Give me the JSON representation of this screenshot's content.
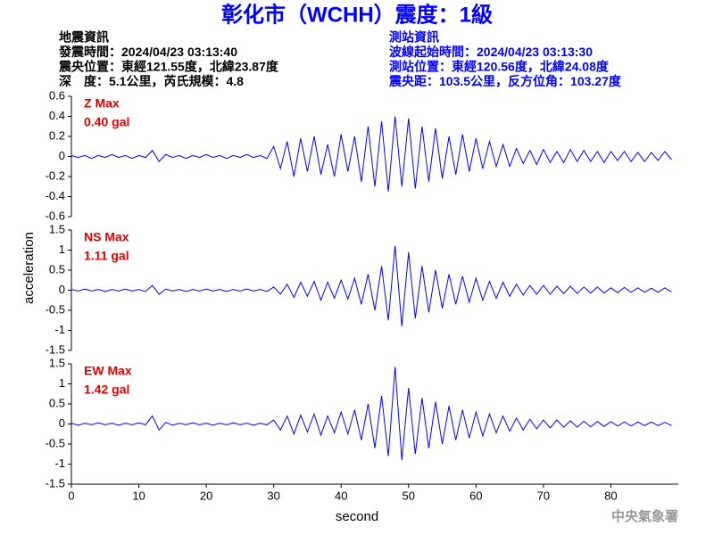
{
  "title": "彰化市（WCHH）震度：1級",
  "info_left": [
    "地震資訊",
    "發震時間：2024/04/23 03:13:40",
    "震央位置：東經121.55度，北緯23.87度",
    "深　度：5.1公里，芮氏規模：4.8"
  ],
  "info_right": [
    "測站資訊",
    "波線起始時間：2024/04/23 03:13:30",
    "測站位置：東經120.56度，北緯24.08度",
    "震央距：103.5公里，反方位角：103.27度"
  ],
  "footer": "中央氣象署",
  "chart_data": [
    {
      "type": "line",
      "label": "Z Max",
      "max_label": "0.40 gal",
      "color": "#0000ff",
      "x": [
        0,
        1,
        2,
        3,
        4,
        5,
        6,
        7,
        8,
        9,
        10,
        11,
        12,
        13,
        14,
        15,
        16,
        17,
        18,
        19,
        20,
        21,
        22,
        23,
        24,
        25,
        26,
        27,
        28,
        29,
        30,
        31,
        32,
        33,
        34,
        35,
        36,
        37,
        38,
        39,
        40,
        41,
        42,
        43,
        44,
        45,
        46,
        47,
        48,
        49,
        50,
        51,
        52,
        53,
        54,
        55,
        56,
        57,
        58,
        59,
        60,
        61,
        62,
        63,
        64,
        65,
        66,
        67,
        68,
        69,
        70,
        71,
        72,
        73,
        74,
        75,
        76,
        77,
        78,
        79,
        80,
        81,
        82,
        83,
        84,
        85,
        86,
        87,
        88,
        89
      ],
      "values": [
        0.01,
        -0.01,
        0.01,
        -0.02,
        0.01,
        -0.01,
        0.02,
        -0.01,
        0.01,
        -0.02,
        0.01,
        -0.01,
        0.06,
        -0.05,
        0.02,
        -0.01,
        0.01,
        -0.02,
        0.01,
        -0.01,
        0.02,
        -0.01,
        0.01,
        -0.02,
        0.01,
        -0.01,
        0.02,
        -0.01,
        0.01,
        -0.02,
        0.1,
        -0.12,
        0.15,
        -0.2,
        0.18,
        -0.15,
        0.2,
        -0.18,
        0.12,
        -0.2,
        0.22,
        -0.15,
        0.2,
        -0.25,
        0.3,
        -0.3,
        0.35,
        -0.35,
        0.4,
        -0.3,
        0.38,
        -0.32,
        0.3,
        -0.25,
        0.28,
        -0.22,
        0.2,
        -0.18,
        0.22,
        -0.15,
        0.18,
        -0.12,
        0.15,
        -0.1,
        0.12,
        -0.1,
        0.08,
        -0.07,
        0.06,
        -0.08,
        0.07,
        -0.06,
        0.05,
        -0.06,
        0.07,
        -0.05,
        0.06,
        -0.05,
        0.05,
        -0.06,
        0.05,
        -0.04,
        0.05,
        -0.05,
        0.04,
        -0.05,
        0.04,
        -0.04,
        0.05,
        -0.03
      ],
      "xlim": [
        0,
        90
      ],
      "ylim": [
        -0.6,
        0.6
      ],
      "yticks": [
        -0.6,
        -0.4,
        -0.2,
        0,
        0.2,
        0.4,
        0.6
      ]
    },
    {
      "type": "line",
      "label": "NS Max",
      "max_label": "1.11 gal",
      "color": "#0000ff",
      "ylabel": "acceleration",
      "x": [
        0,
        1,
        2,
        3,
        4,
        5,
        6,
        7,
        8,
        9,
        10,
        11,
        12,
        13,
        14,
        15,
        16,
        17,
        18,
        19,
        20,
        21,
        22,
        23,
        24,
        25,
        26,
        27,
        28,
        29,
        30,
        31,
        32,
        33,
        34,
        35,
        36,
        37,
        38,
        39,
        40,
        41,
        42,
        43,
        44,
        45,
        46,
        47,
        48,
        49,
        50,
        51,
        52,
        53,
        54,
        55,
        56,
        57,
        58,
        59,
        60,
        61,
        62,
        63,
        64,
        65,
        66,
        67,
        68,
        69,
        70,
        71,
        72,
        73,
        74,
        75,
        76,
        77,
        78,
        79,
        80,
        81,
        82,
        83,
        84,
        85,
        86,
        87,
        88,
        89
      ],
      "values": [
        0.02,
        -0.02,
        0.03,
        -0.02,
        0.02,
        -0.03,
        0.02,
        -0.02,
        0.03,
        -0.02,
        0.02,
        -0.03,
        0.12,
        -0.1,
        0.03,
        -0.02,
        0.02,
        -0.03,
        0.02,
        -0.02,
        0.03,
        -0.02,
        0.02,
        -0.03,
        0.02,
        -0.02,
        0.03,
        -0.02,
        0.02,
        -0.03,
        0.08,
        -0.1,
        0.15,
        -0.18,
        0.2,
        -0.15,
        0.22,
        -0.25,
        0.2,
        -0.2,
        0.25,
        -0.22,
        0.3,
        -0.35,
        0.4,
        -0.5,
        0.6,
        -0.75,
        1.11,
        -0.9,
        0.95,
        -0.7,
        0.6,
        -0.55,
        0.5,
        -0.45,
        0.4,
        -0.35,
        0.35,
        -0.3,
        0.3,
        -0.25,
        0.22,
        -0.2,
        0.2,
        -0.15,
        0.15,
        -0.12,
        0.12,
        -0.1,
        0.12,
        -0.1,
        0.1,
        -0.08,
        0.1,
        -0.08,
        0.08,
        -0.07,
        0.08,
        -0.07,
        0.06,
        -0.06,
        0.07,
        -0.05,
        0.06,
        -0.05,
        0.05,
        -0.05,
        0.06,
        -0.04
      ],
      "xlim": [
        0,
        90
      ],
      "ylim": [
        -1.5,
        1.5
      ],
      "yticks": [
        -1.5,
        -1,
        -0.5,
        0,
        0.5,
        1,
        1.5
      ]
    },
    {
      "type": "line",
      "label": "EW Max",
      "max_label": "1.42 gal",
      "color": "#0000ff",
      "xlabel": "second",
      "x": [
        0,
        1,
        2,
        3,
        4,
        5,
        6,
        7,
        8,
        9,
        10,
        11,
        12,
        13,
        14,
        15,
        16,
        17,
        18,
        19,
        20,
        21,
        22,
        23,
        24,
        25,
        26,
        27,
        28,
        29,
        30,
        31,
        32,
        33,
        34,
        35,
        36,
        37,
        38,
        39,
        40,
        41,
        42,
        43,
        44,
        45,
        46,
        47,
        48,
        49,
        50,
        51,
        52,
        53,
        54,
        55,
        56,
        57,
        58,
        59,
        60,
        61,
        62,
        63,
        64,
        65,
        66,
        67,
        68,
        69,
        70,
        71,
        72,
        73,
        74,
        75,
        76,
        77,
        78,
        79,
        80,
        81,
        82,
        83,
        84,
        85,
        86,
        87,
        88,
        89
      ],
      "values": [
        0.02,
        -0.03,
        0.02,
        -0.02,
        0.03,
        -0.02,
        0.02,
        -0.03,
        0.02,
        -0.02,
        0.03,
        -0.02,
        0.2,
        -0.15,
        0.04,
        -0.03,
        0.02,
        -0.02,
        0.03,
        -0.02,
        0.02,
        -0.03,
        0.02,
        -0.02,
        0.03,
        -0.02,
        0.02,
        -0.03,
        0.02,
        -0.02,
        0.1,
        -0.15,
        0.2,
        -0.25,
        0.22,
        -0.2,
        0.25,
        -0.28,
        0.2,
        -0.22,
        0.3,
        -0.25,
        0.35,
        -0.4,
        0.5,
        -0.6,
        0.7,
        -0.8,
        1.42,
        -0.9,
        0.9,
        -0.75,
        0.65,
        -0.6,
        0.55,
        -0.5,
        0.45,
        -0.4,
        0.35,
        -0.35,
        0.3,
        -0.3,
        0.25,
        -0.22,
        0.2,
        -0.18,
        0.15,
        -0.15,
        0.12,
        -0.12,
        0.1,
        -0.1,
        0.1,
        -0.08,
        0.08,
        -0.08,
        0.07,
        -0.07,
        0.06,
        -0.06,
        0.06,
        -0.05,
        0.05,
        -0.05,
        0.05,
        -0.04,
        0.05,
        -0.04,
        0.04,
        -0.04
      ],
      "xlim": [
        0,
        90
      ],
      "ylim": [
        -1.5,
        1.5
      ],
      "yticks": [
        -1.5,
        -1,
        -0.5,
        0,
        0.5,
        1,
        1.5
      ],
      "xticks": [
        0,
        10,
        20,
        30,
        40,
        50,
        60,
        70,
        80
      ]
    }
  ]
}
